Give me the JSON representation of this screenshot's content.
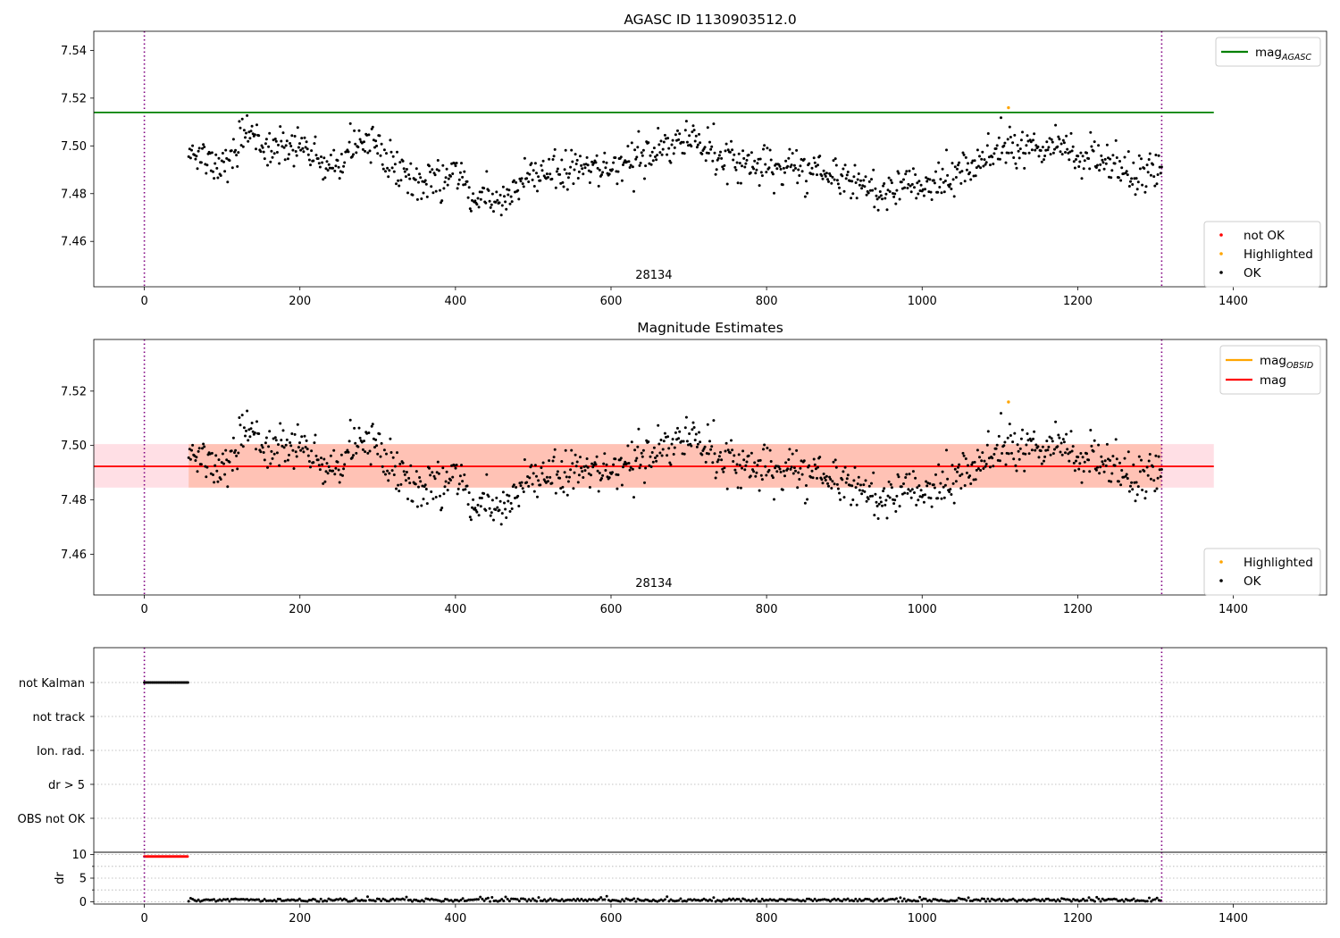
{
  "chart_data": [
    {
      "type": "scatter",
      "title": "AGASC ID 1130903512.0",
      "xlim": [
        -65,
        1520
      ],
      "ylim": [
        7.441,
        7.548
      ],
      "xticks": [
        "0",
        "200",
        "400",
        "600",
        "800",
        "1000",
        "1200",
        "1400"
      ],
      "yticks": [
        "7.46",
        "7.48",
        "7.50",
        "7.52",
        "7.54"
      ],
      "vlines": [
        0,
        1308
      ],
      "hline": {
        "name": "mag_AGASC",
        "value": 7.514,
        "x_end": 1375,
        "color": "#008000"
      },
      "annotation": {
        "text": "28134",
        "x": 655
      },
      "legend_lines": [
        {
          "label": "mag",
          "sub": "AGASC",
          "color": "#008000"
        }
      ],
      "legend_points": [
        {
          "label": "not OK",
          "color": "#ff0000"
        },
        {
          "label": "Highlighted",
          "color": "#ffa500"
        },
        {
          "label": "OK",
          "color": "#000000"
        }
      ],
      "series": [
        {
          "name": "OK",
          "color": "#000000",
          "x_range": [
            57,
            1308
          ],
          "count": 1000,
          "profile": [
            [
              57,
              7.497
            ],
            [
              100,
              7.493
            ],
            [
              135,
              7.505
            ],
            [
              160,
              7.497
            ],
            [
              200,
              7.501
            ],
            [
              240,
              7.49
            ],
            [
              270,
              7.5
            ],
            [
              290,
              7.503
            ],
            [
              320,
              7.492
            ],
            [
              360,
              7.484
            ],
            [
              400,
              7.49
            ],
            [
              430,
              7.477
            ],
            [
              460,
              7.477
            ],
            [
              490,
              7.487
            ],
            [
              520,
              7.487
            ],
            [
              560,
              7.491
            ],
            [
              600,
              7.49
            ],
            [
              640,
              7.496
            ],
            [
              660,
              7.498
            ],
            [
              700,
              7.503
            ],
            [
              730,
              7.497
            ],
            [
              760,
              7.492
            ],
            [
              800,
              7.491
            ],
            [
              840,
              7.49
            ],
            [
              880,
              7.489
            ],
            [
              920,
              7.483
            ],
            [
              950,
              7.479
            ],
            [
              980,
              7.485
            ],
            [
              1010,
              7.482
            ],
            [
              1040,
              7.487
            ],
            [
              1070,
              7.493
            ],
            [
              1100,
              7.5
            ],
            [
              1140,
              7.498
            ],
            [
              1170,
              7.501
            ],
            [
              1200,
              7.496
            ],
            [
              1240,
              7.493
            ],
            [
              1270,
              7.488
            ],
            [
              1308,
              7.491
            ]
          ],
          "noise": 0.004
        },
        {
          "name": "Highlighted",
          "color": "#ffa500",
          "points": [
            [
              1111,
              7.516
            ]
          ]
        }
      ]
    },
    {
      "type": "scatter",
      "title": "Magnitude Estimates",
      "xlim": [
        -65,
        1520
      ],
      "ylim": [
        7.445,
        7.539
      ],
      "xticks": [
        "0",
        "200",
        "400",
        "600",
        "800",
        "1000",
        "1200",
        "1400"
      ],
      "yticks": [
        "7.46",
        "7.48",
        "7.50",
        "7.52"
      ],
      "vlines": [
        0,
        1308
      ],
      "hline": {
        "name": "mag",
        "value": 7.4923,
        "x_end": 1375,
        "color": "#ff0000"
      },
      "band_outer": {
        "low": 7.4845,
        "high": 7.5005,
        "x_end": 1375,
        "color": "#ffc0cb"
      },
      "band_inner": {
        "low": 7.4845,
        "high": 7.5005,
        "x_start": 57,
        "x_end": 1308,
        "color": "#ffa07a"
      },
      "annotation": {
        "text": "28134",
        "x": 655
      },
      "legend_lines": [
        {
          "label": "mag",
          "sub": "OBSID",
          "color": "#ffa500"
        },
        {
          "label": "mag",
          "sub": "",
          "color": "#ff0000"
        }
      ],
      "legend_points": [
        {
          "label": "Highlighted",
          "color": "#ffa500"
        },
        {
          "label": "OK",
          "color": "#000000"
        }
      ],
      "series": [
        {
          "name": "OK",
          "same_as_panel": 0
        },
        {
          "name": "Highlighted",
          "color": "#ffa500",
          "points": [
            [
              1111,
              7.516
            ]
          ]
        }
      ]
    },
    {
      "type": "scatter",
      "xlim": [
        -65,
        1520
      ],
      "categories": [
        "not Kalman",
        "not track",
        "Ion. rad.",
        "dr > 5",
        "OBS not OK"
      ],
      "flag_runs": [
        {
          "category": "not Kalman",
          "x_range": [
            0,
            56
          ]
        }
      ],
      "vlines": [
        0,
        1308
      ],
      "dr_panel": {
        "ylabel": "dr",
        "ylim": [
          -0.5,
          10.5
        ],
        "yticks": [
          "0",
          "5",
          "10"
        ],
        "xticks": [
          "0",
          "200",
          "400",
          "600",
          "800",
          "1000",
          "1200",
          "1400"
        ],
        "not_ok": {
          "color": "#ff0000",
          "x_range": [
            0,
            56
          ],
          "value": 9.6
        },
        "ok": {
          "color": "#000000",
          "x_range": [
            57,
            1308
          ],
          "mean": 0.35,
          "spread": 0.3
        }
      }
    }
  ]
}
